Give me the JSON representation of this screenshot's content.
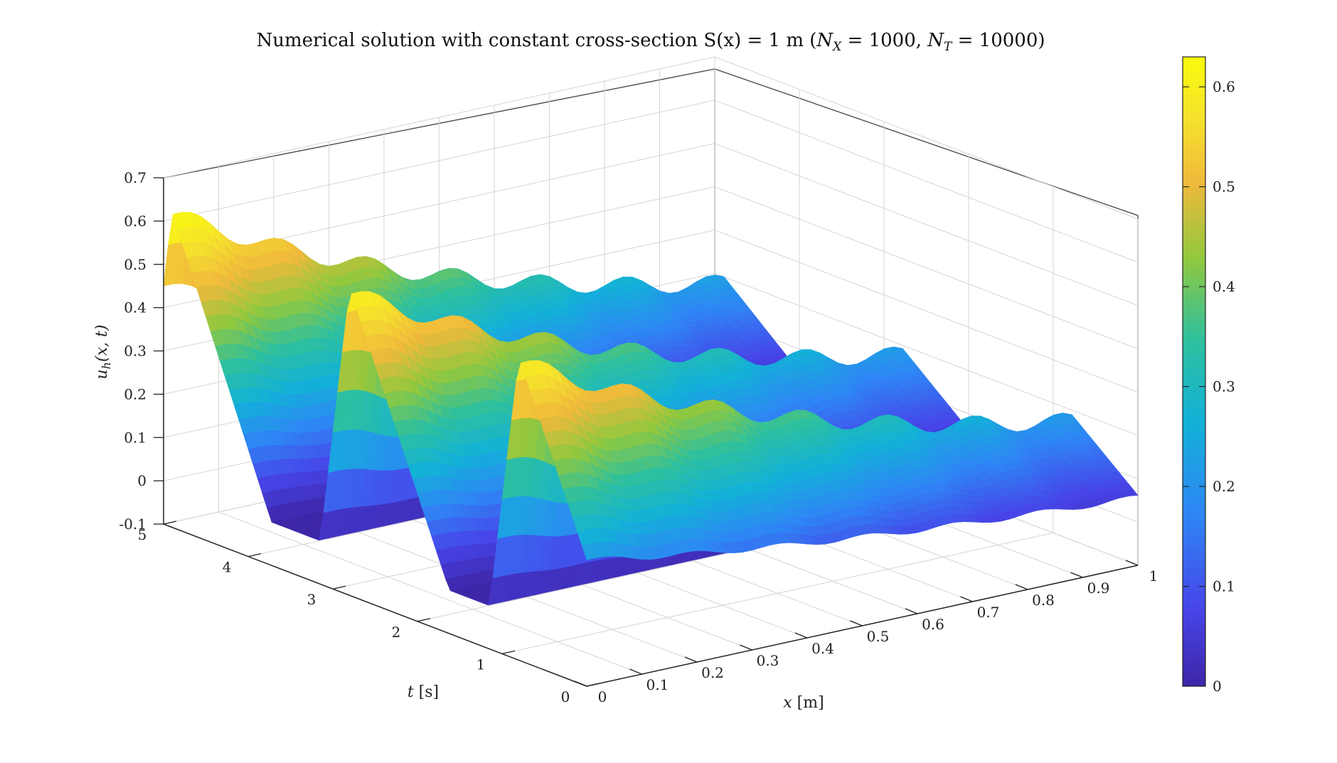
{
  "chart_data": {
    "type": "surface",
    "title": {
      "main": "Numerical solution with constant cross-section S(x) = 1 m (",
      "nx_symbol": "N",
      "nx_sub": "X",
      "nx_value": " = 1000, ",
      "nt_symbol": "N",
      "nt_sub": "T",
      "nt_value": " = 10000)"
    },
    "xlabel": {
      "var": "x",
      "unit": " [m]"
    },
    "ylabel": {
      "var": "t",
      "unit": " [s]"
    },
    "zlabel": {
      "var": "u",
      "sub": "h",
      "args": "(x, t)"
    },
    "xlim": [
      0,
      1
    ],
    "tlim": [
      0,
      5
    ],
    "zlim": [
      -0.1,
      0.7
    ],
    "xticks": [
      "0",
      "0.1",
      "0.2",
      "0.3",
      "0.4",
      "0.5",
      "0.6",
      "0.7",
      "0.8",
      "0.9",
      "1"
    ],
    "tticks": [
      "0",
      "1",
      "2",
      "3",
      "4",
      "5"
    ],
    "zticks": [
      "-0.1",
      "0",
      "0.1",
      "0.2",
      "0.3",
      "0.4",
      "0.5",
      "0.6",
      "0.7"
    ],
    "colorbar": {
      "range": [
        0,
        0.63
      ],
      "ticks": [
        "0",
        "0.1",
        "0.2",
        "0.3",
        "0.4",
        "0.5",
        "0.6"
      ],
      "colormap": "parula",
      "colors": [
        "#3e26a8",
        "#4744e8",
        "#2f85f5",
        "#13b1d8",
        "#2ec09e",
        "#91c83e",
        "#f0b93c",
        "#f5e12d",
        "#f9fb0e"
      ]
    },
    "surface": {
      "description_free": true,
      "waves": [
        {
          "t_center": 4.9,
          "x_peak": 0.0,
          "u_peak": 0.63
        },
        {
          "t_center": 2.8,
          "x_peak": 0.0,
          "u_peak": 0.61
        },
        {
          "t_center": 0.8,
          "x_peak": 0.0,
          "u_peak": 0.6
        }
      ]
    },
    "grid": true
  }
}
